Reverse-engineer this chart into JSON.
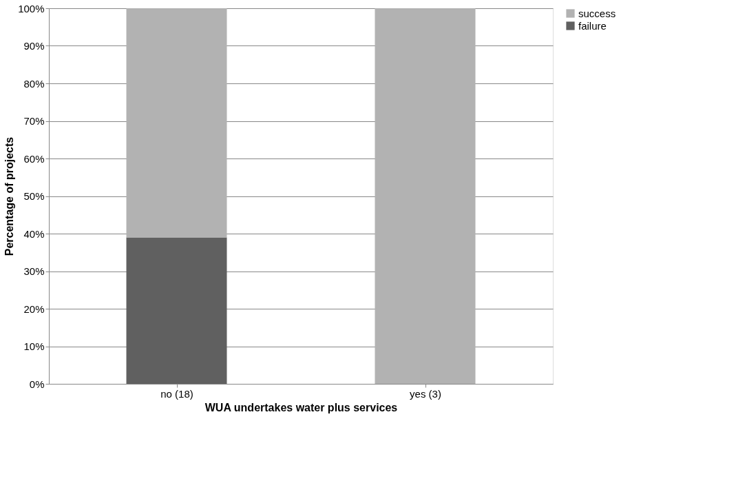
{
  "chart_data": {
    "type": "bar",
    "stacked": true,
    "xlabel": "WUA undertakes water plus services",
    "ylabel": "Percentage of projects",
    "categories": [
      "no (18)",
      "yes  (3)"
    ],
    "series": [
      {
        "name": "failure",
        "color": "#606060",
        "values": [
          39,
          0
        ]
      },
      {
        "name": "success",
        "color": "#b2b2b2",
        "values": [
          61,
          100
        ]
      }
    ],
    "ylim": [
      0,
      100
    ],
    "yticks": [
      {
        "value": 0,
        "label": "0%"
      },
      {
        "value": 10,
        "label": "10%"
      },
      {
        "value": 20,
        "label": "20%"
      },
      {
        "value": 30,
        "label": "30%"
      },
      {
        "value": 40,
        "label": "40%"
      },
      {
        "value": 50,
        "label": "50%"
      },
      {
        "value": 60,
        "label": "60%"
      },
      {
        "value": 70,
        "label": "70%"
      },
      {
        "value": 80,
        "label": "80%"
      },
      {
        "value": 90,
        "label": "90%"
      },
      {
        "value": 100,
        "label": "100%"
      }
    ],
    "grid": "y",
    "legend": "right"
  }
}
